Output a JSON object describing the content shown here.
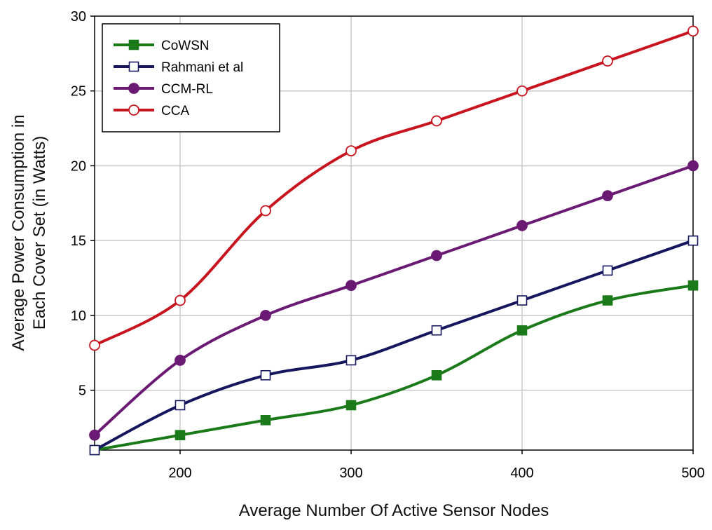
{
  "chart_data": {
    "type": "line",
    "title": "",
    "xlabel": "Average Number Of Active Sensor Nodes",
    "ylabel_lines": [
      "Average Power Consumption in",
      "Each Cover Set (in Watts)"
    ],
    "x": [
      150,
      200,
      250,
      300,
      350,
      400,
      450,
      500
    ],
    "xlim": [
      150,
      500
    ],
    "ylim": [
      1,
      30
    ],
    "xticks": [
      200,
      300,
      400,
      500
    ],
    "yticks": [
      5,
      10,
      15,
      20,
      25,
      30
    ],
    "grid": true,
    "legend_position": "top-left",
    "series": [
      {
        "name": "CoWSN",
        "color": "#1a7a1a",
        "marker": "square-filled",
        "values": [
          1,
          2,
          3,
          4,
          6,
          9,
          11,
          12
        ]
      },
      {
        "name": "Rahmani et al",
        "color": "#16165e",
        "marker": "square-open",
        "values": [
          1,
          4,
          6,
          7,
          9,
          11,
          13,
          15
        ]
      },
      {
        "name": "CCM-RL",
        "color": "#6b1a74",
        "marker": "circle-filled",
        "values": [
          2,
          7,
          10,
          12,
          14,
          16,
          18,
          20
        ]
      },
      {
        "name": "CCA",
        "color": "#c8141e",
        "marker": "circle-open",
        "values": [
          8,
          11,
          17,
          21,
          23,
          25,
          27,
          29
        ]
      }
    ]
  }
}
